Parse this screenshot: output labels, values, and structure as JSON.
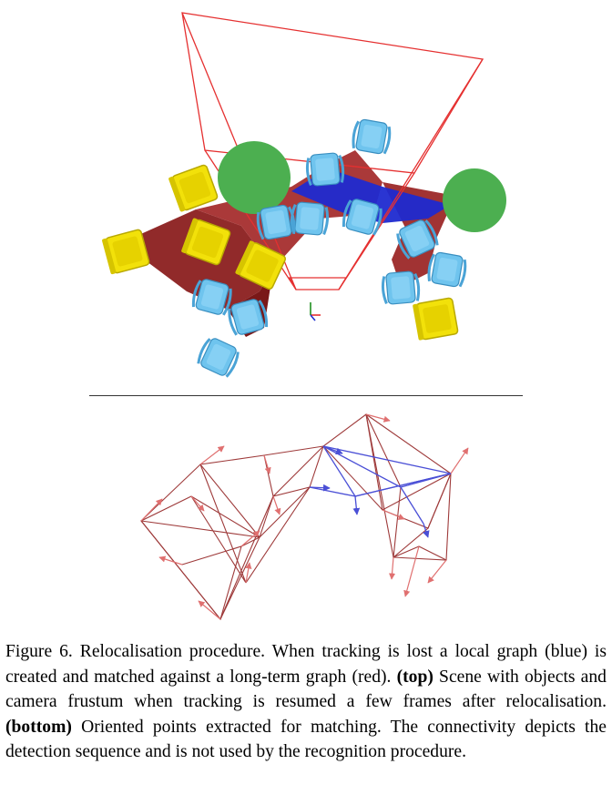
{
  "figure": {
    "top_panel": {
      "objects": [
        {
          "kind": "chair",
          "color": "#f2e10a"
        },
        {
          "kind": "chair",
          "color": "#6fc4ee"
        },
        {
          "kind": "sphere",
          "color": "#4caf50"
        },
        {
          "kind": "long-term-graph",
          "color": "#8b1a1a"
        },
        {
          "kind": "local-graph",
          "color": "#1f2ad0"
        },
        {
          "kind": "camera-frustum",
          "color": "#e53030"
        }
      ]
    },
    "bottom_panel": {
      "long_term_graph_color": "#9e3a3a",
      "local_graph_color": "#4a4fd6",
      "arrow_color": "#e07070"
    }
  },
  "caption": {
    "label": "Figure 6.",
    "text_1": " Relocalisation procedure.  When tracking is lost a local graph (blue) is created and matched against a long-term graph (red). ",
    "top_tag": "(top)",
    "text_2": " Scene with objects and camera frustum when tracking is resumed a few frames after relocalisation. ",
    "bottom_tag": "(bottom)",
    "text_3": " Oriented points extracted for matching. The connectivity depicts the detection sequence and is not used by the recognition procedure."
  }
}
